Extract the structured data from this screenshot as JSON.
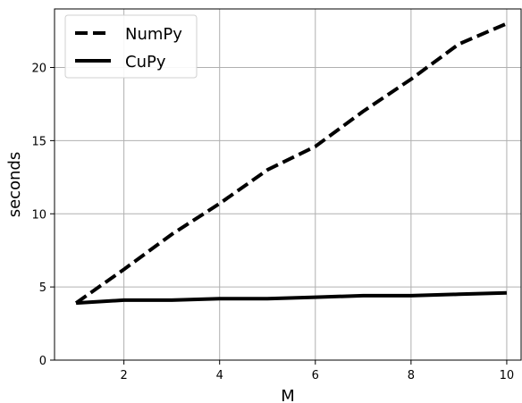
{
  "chart_data": {
    "type": "line",
    "xlabel": "M",
    "ylabel": "seconds",
    "xlim": [
      0.55,
      10.3
    ],
    "ylim": [
      0,
      24
    ],
    "xticks": [
      2,
      4,
      6,
      8,
      10
    ],
    "yticks": [
      0,
      5,
      10,
      15,
      20
    ],
    "grid": true,
    "legend_position": "upper-left",
    "x": [
      1,
      2,
      3,
      4,
      5,
      6,
      7,
      8,
      9,
      10
    ],
    "series": [
      {
        "name": "NumPy",
        "style": "dashed",
        "color": "#000000",
        "values": [
          3.9,
          6.2,
          8.6,
          10.7,
          13.0,
          14.6,
          17.0,
          19.2,
          21.6,
          23.0
        ]
      },
      {
        "name": "CuPy",
        "style": "solid",
        "color": "#000000",
        "values": [
          3.9,
          4.1,
          4.1,
          4.2,
          4.2,
          4.3,
          4.4,
          4.4,
          4.5,
          4.6
        ]
      }
    ]
  }
}
